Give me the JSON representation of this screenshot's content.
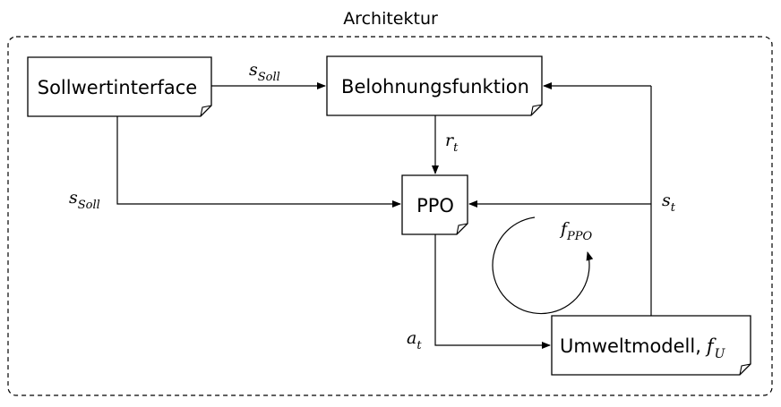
{
  "frame": {
    "title": "Architektur"
  },
  "nodes": {
    "sollwertinterface": {
      "label": "Sollwertinterface"
    },
    "belohnungsfunktion": {
      "label": "Belohnungsfunktion"
    },
    "ppo": {
      "label": "PPO"
    },
    "umweltmodell": {
      "label": "Umweltmodell,",
      "math": "f",
      "math_sub": "U"
    }
  },
  "edge_labels": {
    "s_soll_top": {
      "main": "s",
      "sub": "Soll"
    },
    "s_soll_left": {
      "main": "s",
      "sub": "Soll"
    },
    "r_t": {
      "main": "r",
      "sub": "t"
    },
    "s_t": {
      "main": "s",
      "sub": "t"
    },
    "a_t": {
      "main": "a",
      "sub": "t"
    },
    "f_ppo": {
      "main": "f",
      "sub": "PPO"
    }
  }
}
